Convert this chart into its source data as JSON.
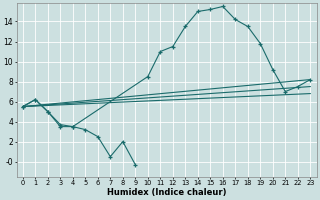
{
  "bg_color": "#cce0e0",
  "grid_color": "#ffffff",
  "line_color": "#1a6b6b",
  "xlabel": "Humidex (Indice chaleur)",
  "xlim": [
    -0.5,
    23.5
  ],
  "ylim": [
    -1.5,
    15.8
  ],
  "xticks": [
    0,
    1,
    2,
    3,
    4,
    5,
    6,
    7,
    8,
    9,
    10,
    11,
    12,
    13,
    14,
    15,
    16,
    17,
    18,
    19,
    20,
    21,
    22,
    23
  ],
  "yticks": [
    0,
    2,
    4,
    6,
    8,
    10,
    12,
    14
  ],
  "ytick_labels": [
    "-0",
    "2",
    "4",
    "6",
    "8",
    "10",
    "12",
    "14"
  ],
  "curves": [
    {
      "x": [
        0,
        1,
        2,
        3,
        4,
        10,
        11,
        12,
        13,
        14,
        15,
        16,
        17,
        18,
        19,
        20,
        21,
        22,
        23
      ],
      "y": [
        5.5,
        6.2,
        5.0,
        3.7,
        3.5,
        8.5,
        11.0,
        11.5,
        13.5,
        15.0,
        15.2,
        15.5,
        14.2,
        13.5,
        11.8,
        9.2,
        7.0,
        7.5,
        8.2
      ],
      "marker": true
    },
    {
      "x": [
        0,
        1,
        2,
        3,
        4,
        5,
        6,
        7,
        8,
        9
      ],
      "y": [
        5.5,
        6.2,
        5.0,
        3.5,
        3.5,
        3.2,
        2.5,
        0.5,
        2.0,
        -0.3
      ],
      "marker": true
    },
    {
      "x": [
        0,
        23
      ],
      "y": [
        5.5,
        8.2
      ],
      "marker": false
    },
    {
      "x": [
        0,
        23
      ],
      "y": [
        5.5,
        7.5
      ],
      "marker": false
    },
    {
      "x": [
        0,
        23
      ],
      "y": [
        5.5,
        6.8
      ],
      "marker": false
    }
  ]
}
